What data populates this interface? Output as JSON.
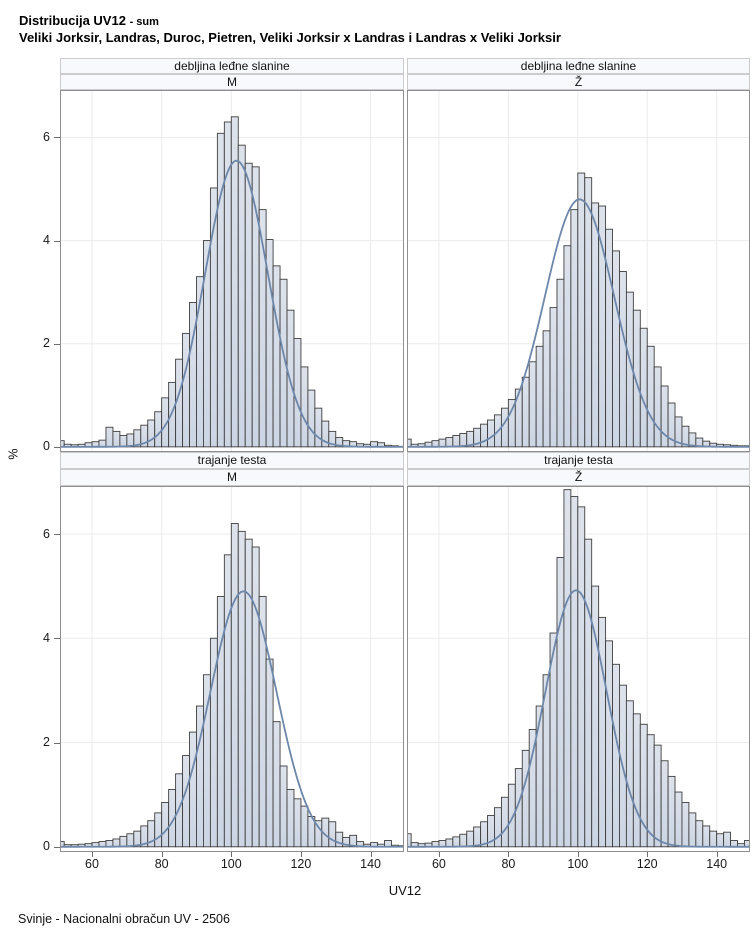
{
  "title": {
    "main": "Distribucija UV12",
    "suffix": "- sum",
    "subtitle": "Veliki Jorksir, Landras, Duroc, Pietren, Veliki Jorksir x Landras i Landras x Veliki Jorksir"
  },
  "footer": "Svinje - Nacionalni obračun UV - 2506",
  "axes": {
    "x_label": "UV12",
    "y_label": "%",
    "x_ticks": [
      60,
      80,
      100,
      120,
      140
    ],
    "y_ticks": [
      0,
      2,
      4,
      6
    ],
    "xlim": [
      50.8,
      149.6
    ],
    "ylim": [
      -0.1,
      6.92
    ]
  },
  "colors": {
    "bar_fill": "#ccd5e3",
    "bar_fill_top": "#dde2eb",
    "bar_stroke": "#3f3f3f",
    "curve": "#6d87aa",
    "grid": "#ebebeb",
    "panel_border": "#8f8f8f",
    "header_fill": "#f8f9fc",
    "header_border": "#cccccc",
    "tick": "#6e6e6e",
    "text": "#000000"
  },
  "chart_data": {
    "type": "histogram-lattice",
    "x_variable": "UV12",
    "y_unit": "percent",
    "bin_start": 50,
    "bin_width": 2,
    "grid": true,
    "panels": [
      {
        "row_header": "debljina leđne slanine",
        "col_header": "M",
        "heights": [
          0.12,
          0.05,
          0.04,
          0.05,
          0.08,
          0.1,
          0.13,
          0.38,
          0.3,
          0.22,
          0.25,
          0.33,
          0.42,
          0.52,
          0.68,
          0.95,
          1.25,
          1.7,
          2.2,
          2.8,
          3.3,
          4.0,
          5.02,
          6.08,
          6.3,
          6.4,
          5.85,
          5.5,
          5.43,
          4.6,
          4.02,
          3.51,
          3.25,
          2.65,
          2.1,
          1.55,
          1.1,
          0.75,
          0.5,
          0.3,
          0.18,
          0.12,
          0.1,
          0.06,
          0.05,
          0.1,
          0.08,
          0.03,
          0.02,
          0.01
        ],
        "normal_curve": {
          "mean": 101.5,
          "sd": 9.0,
          "peak": 5.55
        }
      },
      {
        "row_header": "debljina leđne slanine",
        "col_header": "Ž",
        "heights": [
          0.15,
          0.05,
          0.06,
          0.09,
          0.12,
          0.15,
          0.18,
          0.22,
          0.26,
          0.3,
          0.36,
          0.44,
          0.52,
          0.62,
          0.75,
          0.92,
          1.12,
          1.35,
          1.65,
          1.95,
          2.25,
          2.7,
          3.25,
          3.9,
          4.6,
          5.31,
          5.22,
          4.73,
          4.67,
          4.22,
          3.8,
          3.4,
          3.0,
          2.65,
          2.3,
          1.95,
          1.55,
          1.18,
          0.85,
          0.58,
          0.4,
          0.27,
          0.17,
          0.11,
          0.07,
          0.05,
          0.04,
          0.03,
          0.02,
          0.02
        ],
        "normal_curve": {
          "mean": 100.5,
          "sd": 10.0,
          "peak": 4.8
        }
      },
      {
        "row_header": "trajanje testa",
        "col_header": "M",
        "heights": [
          0.1,
          0.04,
          0.04,
          0.05,
          0.06,
          0.08,
          0.1,
          0.12,
          0.15,
          0.2,
          0.25,
          0.3,
          0.4,
          0.5,
          0.65,
          0.85,
          1.1,
          1.4,
          1.75,
          2.2,
          2.7,
          3.3,
          4.0,
          4.8,
          5.6,
          6.2,
          6.05,
          5.9,
          5.75,
          4.8,
          3.6,
          2.4,
          1.55,
          1.1,
          0.92,
          0.78,
          0.58,
          0.5,
          0.55,
          0.48,
          0.28,
          0.18,
          0.22,
          0.1,
          0.05,
          0.08,
          0.05,
          0.12,
          0.03,
          0.02
        ],
        "normal_curve": {
          "mean": 103.5,
          "sd": 9.5,
          "peak": 4.9
        }
      },
      {
        "row_header": "trajanje testa",
        "col_header": "Ž",
        "heights": [
          0.25,
          0.08,
          0.06,
          0.07,
          0.1,
          0.12,
          0.15,
          0.19,
          0.24,
          0.3,
          0.38,
          0.48,
          0.6,
          0.75,
          0.95,
          1.2,
          1.5,
          1.85,
          2.25,
          2.7,
          3.3,
          4.1,
          5.55,
          6.85,
          6.72,
          6.52,
          5.9,
          5.0,
          4.4,
          3.95,
          3.5,
          3.1,
          2.8,
          2.55,
          2.35,
          2.15,
          1.95,
          1.65,
          1.35,
          1.05,
          0.85,
          0.65,
          0.5,
          0.4,
          0.3,
          0.25,
          0.28,
          0.12,
          0.06,
          0.12
        ],
        "normal_curve": {
          "mean": 99.5,
          "sd": 8.8,
          "peak": 4.92
        }
      }
    ]
  }
}
